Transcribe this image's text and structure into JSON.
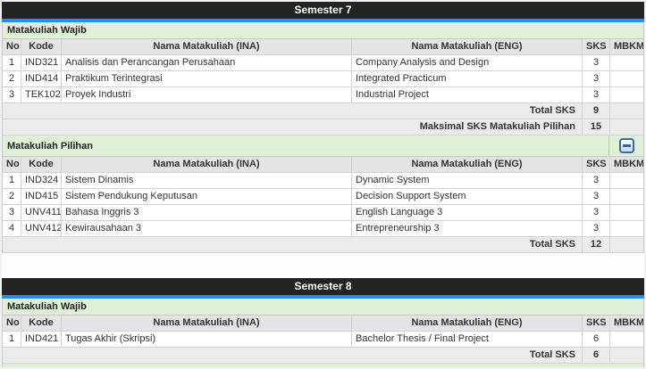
{
  "colors": {
    "title_bar": "#232323",
    "accent_blue": "#1E90FF",
    "section_green": "#DFF0D8",
    "header_gray": "#E4E4E4"
  },
  "columns": [
    "No",
    "Kode",
    "Nama Matakuliah (INA)",
    "Nama Matakuliah (ENG)",
    "SKS",
    "MBKM"
  ],
  "semesters": [
    {
      "title": "Semester 7",
      "sections": [
        {
          "label": "Matakuliah Wajib",
          "collapse_button": false,
          "rows": [
            {
              "no": "1",
              "code": "IND321",
              "ina": "Analisis dan Perancangan Perusahaan",
              "eng": "Company Analysis and Design",
              "sks": "3",
              "mbkm": ""
            },
            {
              "no": "2",
              "code": "IND414",
              "ina": "Praktikum Terintegrasi",
              "eng": "Integrated Practicum",
              "sks": "3",
              "mbkm": ""
            },
            {
              "no": "3",
              "code": "TEK102",
              "ina": "Proyek Industri",
              "eng": "Industrial Project",
              "sks": "3",
              "mbkm": ""
            }
          ],
          "totals": [
            {
              "label": "Total SKS",
              "value": "9"
            },
            {
              "label": "Maksimal SKS Matakuliah Pilihan",
              "value": "15"
            }
          ]
        },
        {
          "label": "Matakuliah Pilihan",
          "collapse_button": true,
          "rows": [
            {
              "no": "1",
              "code": "IND324",
              "ina": "Sistem Dinamis",
              "eng": "Dynamic System",
              "sks": "3",
              "mbkm": ""
            },
            {
              "no": "2",
              "code": "IND415",
              "ina": "Sistem Pendukung Keputusan",
              "eng": "Decision Support System",
              "sks": "3",
              "mbkm": ""
            },
            {
              "no": "3",
              "code": "UNV411",
              "ina": "Bahasa Inggris 3",
              "eng": "English Language 3",
              "sks": "3",
              "mbkm": ""
            },
            {
              "no": "4",
              "code": "UNV412",
              "ina": "Kewirausahaan 3",
              "eng": "Entrepreneurship 3",
              "sks": "3",
              "mbkm": ""
            }
          ],
          "totals": [
            {
              "label": "Total SKS",
              "value": "12"
            }
          ]
        }
      ],
      "partial_next_section": false
    },
    {
      "title": "Semester 8",
      "sections": [
        {
          "label": "Matakuliah Wajib",
          "collapse_button": false,
          "rows": [
            {
              "no": "1",
              "code": "IND421",
              "ina": "Tugas Akhir (Skripsi)",
              "eng": "Bachelor Thesis / Final Project",
              "sks": "6",
              "mbkm": ""
            }
          ],
          "totals": [
            {
              "label": "Total SKS",
              "value": "6"
            }
          ]
        }
      ],
      "partial_next_section": true
    }
  ]
}
